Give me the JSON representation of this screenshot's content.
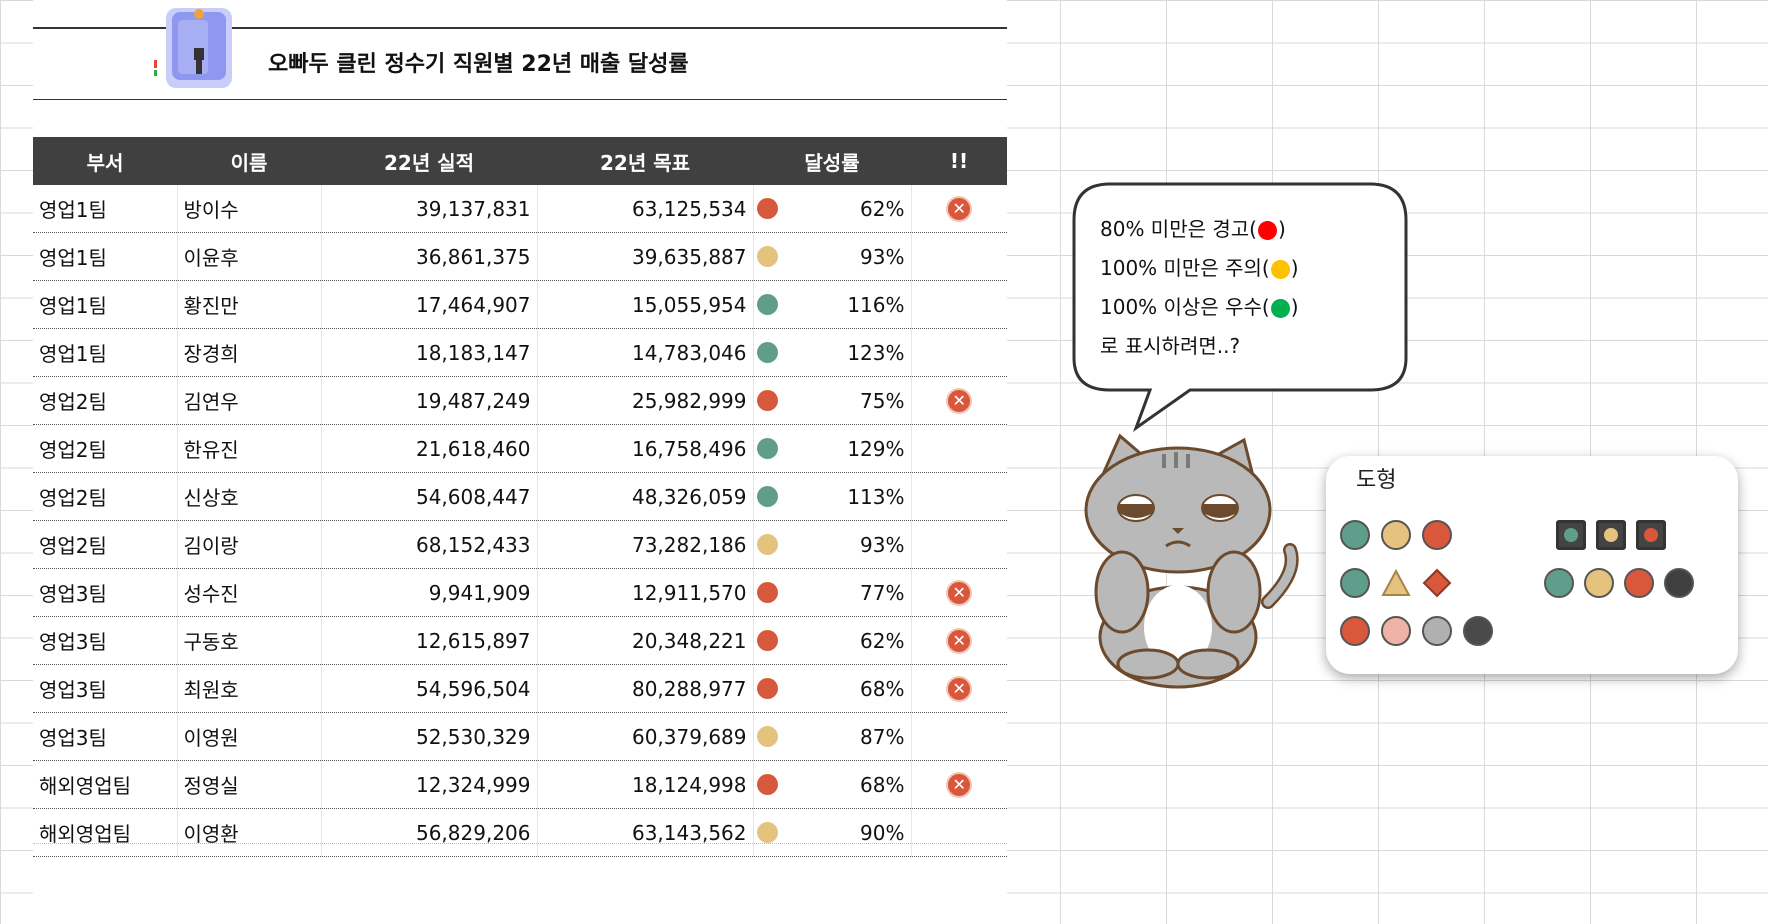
{
  "title": "오빠두 클린 정수기 직원별 22년 매출 달성률",
  "icons": {
    "purifier": "water-purifier-icon",
    "warning": "close-circle-icon"
  },
  "colors": {
    "header_bg": "#404040",
    "good": "#5f9e8a",
    "caution": "#e6c27f",
    "warn": "#d9573b",
    "legend_red": "#ff0000",
    "legend_yellow": "#ffc000",
    "legend_green": "#00b050"
  },
  "table": {
    "headers": [
      "부서",
      "이름",
      "22년 실적",
      "22년 목표",
      "달성률",
      "!!"
    ],
    "rows": [
      {
        "dept": "영업1팀",
        "name": "방이수",
        "actual": "39,137,831",
        "target": "63,125,534",
        "status": "warn",
        "rate": "62%",
        "flag": true
      },
      {
        "dept": "영업1팀",
        "name": "이윤후",
        "actual": "36,861,375",
        "target": "39,635,887",
        "status": "caution",
        "rate": "93%",
        "flag": false
      },
      {
        "dept": "영업1팀",
        "name": "황진만",
        "actual": "17,464,907",
        "target": "15,055,954",
        "status": "good",
        "rate": "116%",
        "flag": false
      },
      {
        "dept": "영업1팀",
        "name": "장경희",
        "actual": "18,183,147",
        "target": "14,783,046",
        "status": "good",
        "rate": "123%",
        "flag": false
      },
      {
        "dept": "영업2팀",
        "name": "김연우",
        "actual": "19,487,249",
        "target": "25,982,999",
        "status": "warn",
        "rate": "75%",
        "flag": true
      },
      {
        "dept": "영업2팀",
        "name": "한유진",
        "actual": "21,618,460",
        "target": "16,758,496",
        "status": "good",
        "rate": "129%",
        "flag": false
      },
      {
        "dept": "영업2팀",
        "name": "신상호",
        "actual": "54,608,447",
        "target": "48,326,059",
        "status": "good",
        "rate": "113%",
        "flag": false
      },
      {
        "dept": "영업2팀",
        "name": "김이랑",
        "actual": "68,152,433",
        "target": "73,282,186",
        "status": "caution",
        "rate": "93%",
        "flag": false
      },
      {
        "dept": "영업3팀",
        "name": "성수진",
        "actual": "9,941,909",
        "target": "12,911,570",
        "status": "warn",
        "rate": "77%",
        "flag": true
      },
      {
        "dept": "영업3팀",
        "name": "구동호",
        "actual": "12,615,897",
        "target": "20,348,221",
        "status": "warn",
        "rate": "62%",
        "flag": true
      },
      {
        "dept": "영업3팀",
        "name": "최원호",
        "actual": "54,596,504",
        "target": "80,288,977",
        "status": "warn",
        "rate": "68%",
        "flag": true
      },
      {
        "dept": "영업3팀",
        "name": "이영원",
        "actual": "52,530,329",
        "target": "60,379,689",
        "status": "caution",
        "rate": "87%",
        "flag": false
      },
      {
        "dept": "해외영업팀",
        "name": "정영실",
        "actual": "12,324,999",
        "target": "18,124,998",
        "status": "warn",
        "rate": "68%",
        "flag": true
      },
      {
        "dept": "해외영업팀",
        "name": "이영환",
        "actual": "56,829,206",
        "target": "63,143,562",
        "status": "caution",
        "rate": "90%",
        "flag": false
      }
    ]
  },
  "bubble": {
    "line1_pre": "80% 미만은 경고(",
    "line2_pre": "100% 미만은 주의(",
    "line3_pre": "100% 이상은 우수(",
    "close_paren": ")",
    "line4": "로 표시하려면..?"
  },
  "panel": {
    "title": "도형"
  }
}
